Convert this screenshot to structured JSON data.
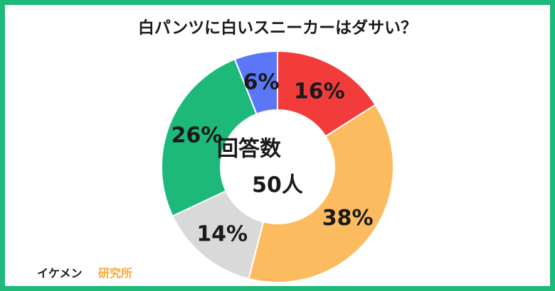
{
  "chart_data": {
    "type": "donut",
    "title": "白パンツに白いスニーカーはダサい？",
    "values": [
      16,
      38,
      14,
      26,
      6
    ],
    "value_labels": [
      "16%",
      "38%",
      "14%",
      "26%",
      "6%"
    ],
    "colors": [
      "#f23b3b",
      "#fdbb60",
      "#d9d9d9",
      "#1cb97b",
      "#5b76f7"
    ],
    "center_label": [
      "回答数",
      "50人"
    ],
    "source": [
      "イケメン",
      "研究所"
    ]
  }
}
